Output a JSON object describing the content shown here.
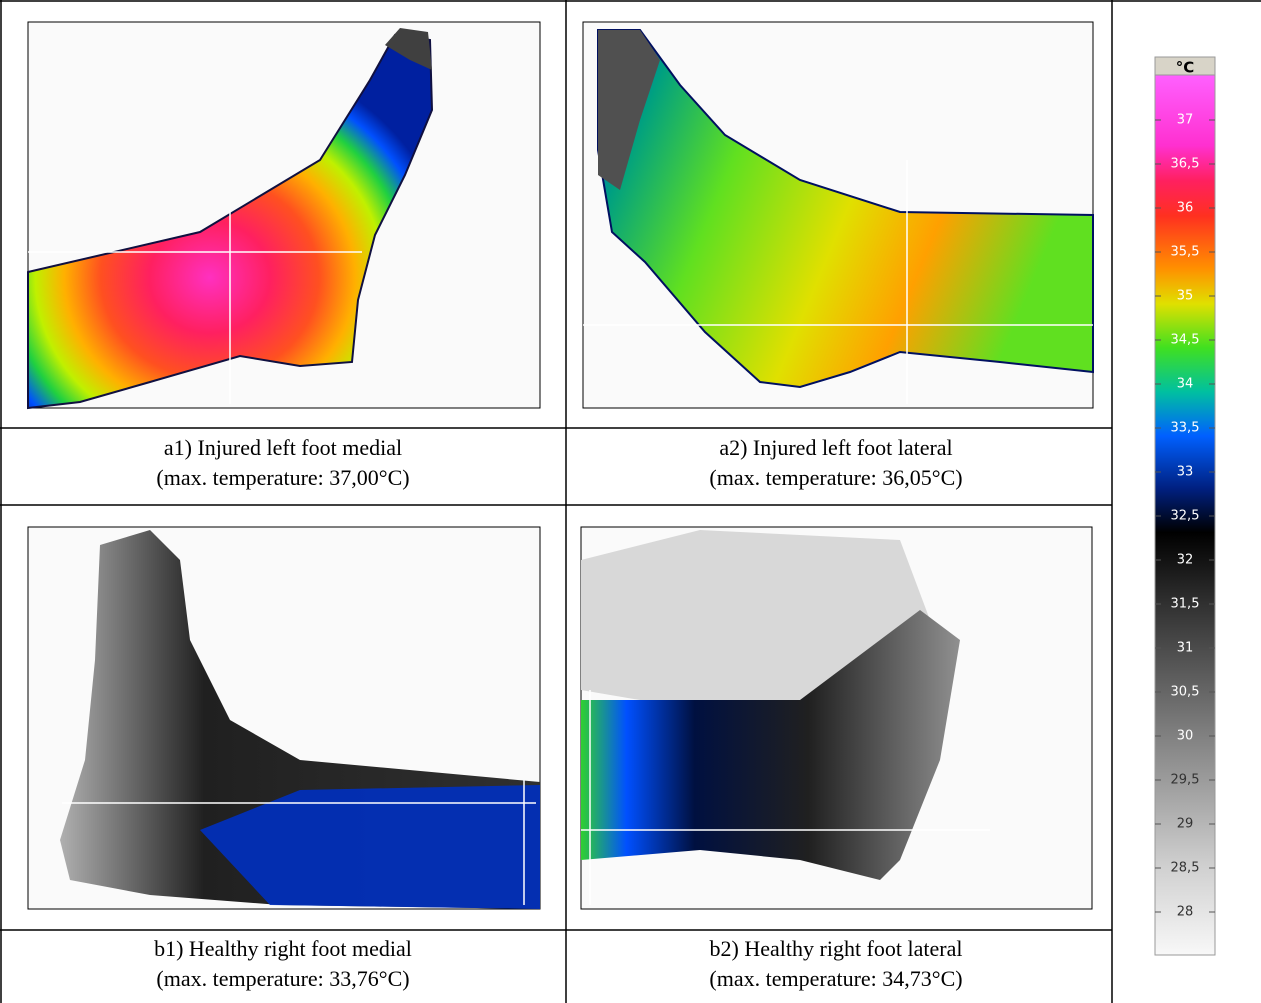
{
  "panels": [
    {
      "label": "a1) Injured left foot medial",
      "detail": "(max. temperature: 37,00°C)"
    },
    {
      "label": "a2) Injured left foot lateral",
      "detail": "(max. temperature: 36,05°C)"
    },
    {
      "label": "b1) Healthy right foot medial",
      "detail": "(max. temperature: 33,76°C)"
    },
    {
      "label": "b2) Healthy right foot lateral",
      "detail": "(max. temperature: 34,73°C)"
    }
  ],
  "colorbar": {
    "unit": "°C",
    "ticks": [
      "37",
      "36,5",
      "36",
      "35,5",
      "35",
      "34,5",
      "34",
      "33,5",
      "33",
      "32,5",
      "32",
      "31,5",
      "31",
      "30,5",
      "30",
      "29,5",
      "29",
      "28,5",
      "28"
    ]
  }
}
